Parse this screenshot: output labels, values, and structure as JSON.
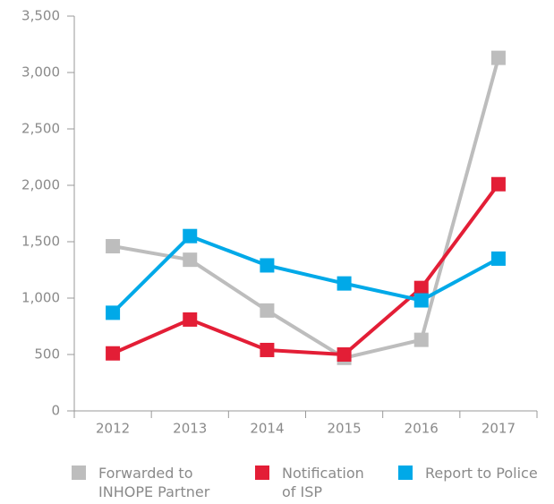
{
  "chart_data": {
    "type": "line",
    "categories": [
      "2012",
      "2013",
      "2014",
      "2015",
      "2016",
      "2017"
    ],
    "series": [
      {
        "name": "Forwarded to INHOPE Partner",
        "color": "#bdbdbd",
        "values": [
          1460,
          1340,
          890,
          470,
          630,
          3130
        ]
      },
      {
        "name": "Notification of ISP",
        "color": "#e31e36",
        "values": [
          510,
          810,
          540,
          500,
          1090,
          2010
        ]
      },
      {
        "name": "Report to Police",
        "color": "#00a9e8",
        "values": [
          870,
          1550,
          1290,
          1130,
          980,
          1350
        ]
      }
    ],
    "ylim": [
      0,
      3500
    ],
    "yticks": [
      0,
      500,
      {
        "value": 1000,
        "label": "1,000"
      },
      {
        "value": 1500,
        "label": "1,500"
      },
      {
        "value": 2000,
        "label": "2,000"
      },
      {
        "value": 2500,
        "label": "2,500"
      },
      {
        "value": 3000,
        "label": "3,000"
      },
      {
        "value": 3500,
        "label": "3,500"
      }
    ],
    "legend": "bottom"
  }
}
